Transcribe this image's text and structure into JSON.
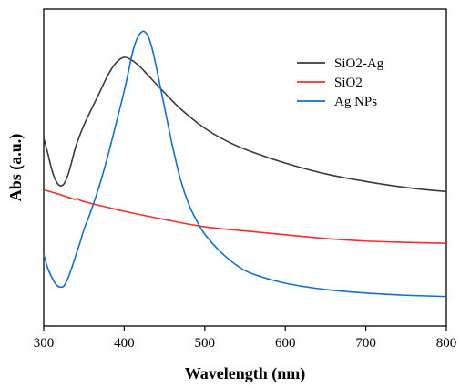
{
  "chart_data": {
    "type": "line",
    "title": "",
    "xlabel": "Wavelength (nm)",
    "ylabel": "Abs (a.u.)",
    "xlim": [
      300,
      800
    ],
    "ylim": [
      0,
      1
    ],
    "x_ticks": [
      "300",
      "400",
      "500",
      "600",
      "700",
      "800"
    ],
    "y_ticks": [],
    "grid": false,
    "legend_position": "top-right",
    "series": [
      {
        "name": "SiO2-Ag",
        "color": "#3a3a3a",
        "points": [
          [
            300,
            0.593
          ],
          [
            305,
            0.545
          ],
          [
            310,
            0.494
          ],
          [
            315,
            0.459
          ],
          [
            320,
            0.443
          ],
          [
            325,
            0.448
          ],
          [
            330,
            0.476
          ],
          [
            335,
            0.52
          ],
          [
            340,
            0.568
          ],
          [
            350,
            0.634
          ],
          [
            360,
            0.688
          ],
          [
            370,
            0.74
          ],
          [
            380,
            0.793
          ],
          [
            390,
            0.831
          ],
          [
            400,
            0.848
          ],
          [
            410,
            0.838
          ],
          [
            420,
            0.817
          ],
          [
            430,
            0.79
          ],
          [
            450,
            0.736
          ],
          [
            470,
            0.685
          ],
          [
            500,
            0.624
          ],
          [
            530,
            0.58
          ],
          [
            560,
            0.548
          ],
          [
            600,
            0.514
          ],
          [
            650,
            0.48
          ],
          [
            700,
            0.456
          ],
          [
            750,
            0.437
          ],
          [
            800,
            0.424
          ]
        ]
      },
      {
        "name": "SiO2",
        "color": "#ff2a2a",
        "points": [
          [
            300,
            0.43
          ],
          [
            320,
            0.415
          ],
          [
            338,
            0.4
          ],
          [
            342,
            0.403
          ],
          [
            345,
            0.397
          ],
          [
            360,
            0.386
          ],
          [
            380,
            0.374
          ],
          [
            400,
            0.362
          ],
          [
            450,
            0.336
          ],
          [
            500,
            0.313
          ],
          [
            550,
            0.3
          ],
          [
            600,
            0.288
          ],
          [
            650,
            0.276
          ],
          [
            700,
            0.268
          ],
          [
            750,
            0.264
          ],
          [
            800,
            0.261
          ]
        ]
      },
      {
        "name": "Ag NPs",
        "color": "#0f6fd6",
        "points": [
          [
            300,
            0.226
          ],
          [
            305,
            0.183
          ],
          [
            310,
            0.154
          ],
          [
            315,
            0.132
          ],
          [
            320,
            0.123
          ],
          [
            325,
            0.126
          ],
          [
            330,
            0.15
          ],
          [
            335,
            0.185
          ],
          [
            340,
            0.224
          ],
          [
            345,
            0.263
          ],
          [
            350,
            0.305
          ],
          [
            355,
            0.338
          ],
          [
            360,
            0.372
          ],
          [
            370,
            0.45
          ],
          [
            380,
            0.54
          ],
          [
            390,
            0.64
          ],
          [
            400,
            0.742
          ],
          [
            405,
            0.8
          ],
          [
            410,
            0.86
          ],
          [
            415,
            0.901
          ],
          [
            420,
            0.924
          ],
          [
            425,
            0.929
          ],
          [
            430,
            0.912
          ],
          [
            435,
            0.872
          ],
          [
            440,
            0.815
          ],
          [
            450,
            0.69
          ],
          [
            460,
            0.567
          ],
          [
            470,
            0.461
          ],
          [
            480,
            0.385
          ],
          [
            490,
            0.332
          ],
          [
            500,
            0.29
          ],
          [
            520,
            0.233
          ],
          [
            540,
            0.191
          ],
          [
            560,
            0.164
          ],
          [
            600,
            0.135
          ],
          [
            650,
            0.115
          ],
          [
            700,
            0.104
          ],
          [
            750,
            0.097
          ],
          [
            800,
            0.093
          ]
        ]
      }
    ]
  }
}
